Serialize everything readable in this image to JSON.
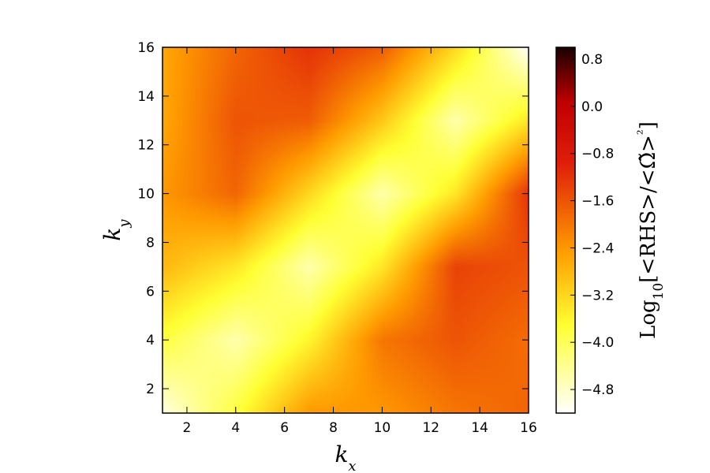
{
  "chart_data": {
    "type": "heatmap",
    "xlabel": "k_x",
    "ylabel": "k_y",
    "colorbar_label": "Log10[<RHS>/<Ω̃>²]",
    "xlim": [
      1,
      16
    ],
    "ylim": [
      1,
      16
    ],
    "x_ticks": [
      2,
      4,
      6,
      8,
      10,
      12,
      14,
      16
    ],
    "y_ticks": [
      2,
      4,
      6,
      8,
      10,
      12,
      14,
      16
    ],
    "colorbar_range": [
      -5.2,
      1.0
    ],
    "colorbar_ticks": [
      "0.8",
      "0.0",
      "−0.8",
      "−1.6",
      "−2.4",
      "−3.2",
      "−4.0",
      "−4.8"
    ],
    "colormap": [
      "#ffffff",
      "#ffff33",
      "#ff9900",
      "#e0200a",
      "#c00000",
      "#1a0000"
    ],
    "grid_x": [
      1,
      4,
      7,
      10,
      13,
      16
    ],
    "grid_y": [
      1,
      4,
      7,
      10,
      13,
      16
    ],
    "values": [
      [
        -5.0,
        -3.8,
        -2.4,
        -2.4,
        -2.0,
        -1.8
      ],
      [
        -3.8,
        -4.6,
        -3.6,
        -2.0,
        -1.6,
        -1.9
      ],
      [
        -2.8,
        -3.4,
        -4.6,
        -3.4,
        -1.4,
        -1.6
      ],
      [
        -2.4,
        -1.8,
        -3.2,
        -4.6,
        -3.4,
        -1.2
      ],
      [
        -2.6,
        -1.6,
        -1.7,
        -3.0,
        -4.6,
        -3.4
      ],
      [
        -2.6,
        -1.8,
        -1.2,
        -1.7,
        -3.2,
        -5.2
      ]
    ]
  }
}
